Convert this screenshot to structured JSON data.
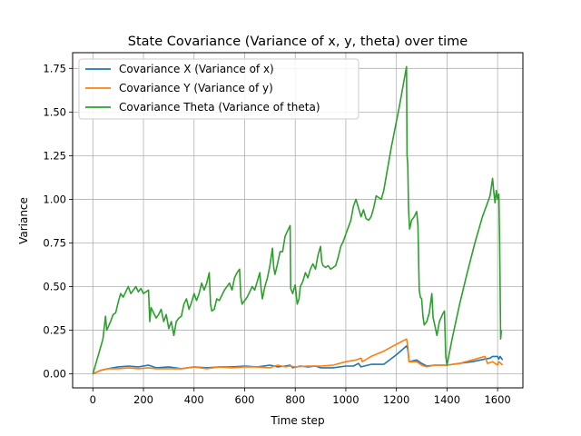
{
  "chart_data": {
    "type": "line",
    "title": "State Covariance (Variance of x, y, theta) over time",
    "xlabel": "Time step",
    "ylabel": "Variance",
    "xlim": [
      -80,
      1700
    ],
    "ylim": [
      -0.08,
      1.84
    ],
    "xticks": [
      0,
      200,
      400,
      600,
      800,
      1000,
      1200,
      1400,
      1600
    ],
    "xtick_labels": [
      "0",
      "200",
      "400",
      "600",
      "800",
      "1000",
      "1200",
      "1400",
      "1600"
    ],
    "yticks": [
      0.0,
      0.25,
      0.5,
      0.75,
      1.0,
      1.25,
      1.5,
      1.75
    ],
    "ytick_labels": [
      "0.00",
      "0.25",
      "0.50",
      "0.75",
      "1.00",
      "1.25",
      "1.50",
      "1.75"
    ],
    "grid": true,
    "legend_position": "upper-left",
    "series": [
      {
        "name": "Covariance X (Variance of x)",
        "color": "#1f77b4",
        "points": [
          [
            0,
            0.0
          ],
          [
            30,
            0.02
          ],
          [
            60,
            0.03
          ],
          [
            100,
            0.04
          ],
          [
            140,
            0.045
          ],
          [
            180,
            0.04
          ],
          [
            220,
            0.05
          ],
          [
            250,
            0.035
          ],
          [
            300,
            0.04
          ],
          [
            350,
            0.03
          ],
          [
            400,
            0.04
          ],
          [
            450,
            0.035
          ],
          [
            500,
            0.04
          ],
          [
            550,
            0.04
          ],
          [
            600,
            0.045
          ],
          [
            650,
            0.04
          ],
          [
            700,
            0.05
          ],
          [
            730,
            0.04
          ],
          [
            760,
            0.045
          ],
          [
            780,
            0.05
          ],
          [
            790,
            0.035
          ],
          [
            820,
            0.045
          ],
          [
            850,
            0.04
          ],
          [
            880,
            0.045
          ],
          [
            900,
            0.035
          ],
          [
            950,
            0.035
          ],
          [
            1000,
            0.045
          ],
          [
            1030,
            0.045
          ],
          [
            1050,
            0.06
          ],
          [
            1060,
            0.04
          ],
          [
            1100,
            0.055
          ],
          [
            1150,
            0.055
          ],
          [
            1200,
            0.11
          ],
          [
            1240,
            0.16
          ],
          [
            1245,
            0.14
          ],
          [
            1250,
            0.07
          ],
          [
            1280,
            0.08
          ],
          [
            1300,
            0.06
          ],
          [
            1320,
            0.045
          ],
          [
            1350,
            0.05
          ],
          [
            1400,
            0.05
          ],
          [
            1450,
            0.06
          ],
          [
            1500,
            0.07
          ],
          [
            1550,
            0.085
          ],
          [
            1570,
            0.09
          ],
          [
            1580,
            0.1
          ],
          [
            1600,
            0.1
          ],
          [
            1605,
            0.085
          ],
          [
            1610,
            0.1
          ],
          [
            1620,
            0.08
          ]
        ]
      },
      {
        "name": "Covariance Y (Variance of y)",
        "color": "#ff7f0e",
        "points": [
          [
            0,
            0.0
          ],
          [
            30,
            0.02
          ],
          [
            60,
            0.03
          ],
          [
            100,
            0.03
          ],
          [
            140,
            0.035
          ],
          [
            180,
            0.03
          ],
          [
            220,
            0.035
          ],
          [
            250,
            0.03
          ],
          [
            300,
            0.03
          ],
          [
            350,
            0.03
          ],
          [
            400,
            0.04
          ],
          [
            450,
            0.03
          ],
          [
            500,
            0.04
          ],
          [
            550,
            0.035
          ],
          [
            600,
            0.04
          ],
          [
            650,
            0.04
          ],
          [
            700,
            0.035
          ],
          [
            730,
            0.05
          ],
          [
            760,
            0.04
          ],
          [
            780,
            0.045
          ],
          [
            800,
            0.04
          ],
          [
            850,
            0.045
          ],
          [
            900,
            0.045
          ],
          [
            950,
            0.05
          ],
          [
            1000,
            0.07
          ],
          [
            1040,
            0.08
          ],
          [
            1060,
            0.09
          ],
          [
            1065,
            0.07
          ],
          [
            1100,
            0.1
          ],
          [
            1150,
            0.13
          ],
          [
            1200,
            0.17
          ],
          [
            1240,
            0.2
          ],
          [
            1245,
            0.16
          ],
          [
            1250,
            0.07
          ],
          [
            1280,
            0.07
          ],
          [
            1300,
            0.05
          ],
          [
            1320,
            0.04
          ],
          [
            1350,
            0.05
          ],
          [
            1400,
            0.05
          ],
          [
            1450,
            0.06
          ],
          [
            1500,
            0.08
          ],
          [
            1550,
            0.1
          ],
          [
            1560,
            0.06
          ],
          [
            1580,
            0.07
          ],
          [
            1600,
            0.05
          ],
          [
            1605,
            0.07
          ],
          [
            1620,
            0.05
          ]
        ]
      },
      {
        "name": "Covariance Theta (Variance of theta)",
        "color": "#2ca02c",
        "points": [
          [
            0,
            0.0
          ],
          [
            20,
            0.1
          ],
          [
            40,
            0.2
          ],
          [
            50,
            0.33
          ],
          [
            55,
            0.25
          ],
          [
            70,
            0.3
          ],
          [
            80,
            0.34
          ],
          [
            90,
            0.35
          ],
          [
            100,
            0.41
          ],
          [
            110,
            0.46
          ],
          [
            120,
            0.44
          ],
          [
            130,
            0.47
          ],
          [
            140,
            0.5
          ],
          [
            150,
            0.46
          ],
          [
            160,
            0.48
          ],
          [
            170,
            0.5
          ],
          [
            180,
            0.47
          ],
          [
            190,
            0.49
          ],
          [
            200,
            0.46
          ],
          [
            220,
            0.48
          ],
          [
            225,
            0.3
          ],
          [
            230,
            0.38
          ],
          [
            240,
            0.35
          ],
          [
            250,
            0.32
          ],
          [
            260,
            0.34
          ],
          [
            270,
            0.37
          ],
          [
            280,
            0.3
          ],
          [
            290,
            0.34
          ],
          [
            300,
            0.26
          ],
          [
            310,
            0.3
          ],
          [
            320,
            0.22
          ],
          [
            330,
            0.3
          ],
          [
            340,
            0.32
          ],
          [
            350,
            0.33
          ],
          [
            360,
            0.4
          ],
          [
            370,
            0.43
          ],
          [
            380,
            0.37
          ],
          [
            390,
            0.41
          ],
          [
            400,
            0.46
          ],
          [
            410,
            0.42
          ],
          [
            420,
            0.46
          ],
          [
            430,
            0.52
          ],
          [
            440,
            0.48
          ],
          [
            450,
            0.52
          ],
          [
            460,
            0.58
          ],
          [
            465,
            0.4
          ],
          [
            470,
            0.36
          ],
          [
            480,
            0.37
          ],
          [
            490,
            0.43
          ],
          [
            500,
            0.42
          ],
          [
            510,
            0.45
          ],
          [
            520,
            0.48
          ],
          [
            530,
            0.5
          ],
          [
            540,
            0.52
          ],
          [
            550,
            0.48
          ],
          [
            560,
            0.55
          ],
          [
            570,
            0.58
          ],
          [
            580,
            0.6
          ],
          [
            585,
            0.44
          ],
          [
            590,
            0.4
          ],
          [
            600,
            0.42
          ],
          [
            610,
            0.44
          ],
          [
            620,
            0.47
          ],
          [
            630,
            0.5
          ],
          [
            640,
            0.48
          ],
          [
            650,
            0.53
          ],
          [
            660,
            0.58
          ],
          [
            665,
            0.49
          ],
          [
            670,
            0.43
          ],
          [
            680,
            0.5
          ],
          [
            690,
            0.55
          ],
          [
            700,
            0.62
          ],
          [
            710,
            0.72
          ],
          [
            715,
            0.61
          ],
          [
            720,
            0.57
          ],
          [
            730,
            0.63
          ],
          [
            740,
            0.7
          ],
          [
            750,
            0.7
          ],
          [
            760,
            0.79
          ],
          [
            770,
            0.82
          ],
          [
            780,
            0.85
          ],
          [
            782,
            0.49
          ],
          [
            790,
            0.46
          ],
          [
            800,
            0.51
          ],
          [
            805,
            0.44
          ],
          [
            808,
            0.4
          ],
          [
            815,
            0.43
          ],
          [
            820,
            0.5
          ],
          [
            830,
            0.53
          ],
          [
            840,
            0.58
          ],
          [
            850,
            0.55
          ],
          [
            860,
            0.6
          ],
          [
            870,
            0.63
          ],
          [
            880,
            0.6
          ],
          [
            890,
            0.68
          ],
          [
            900,
            0.73
          ],
          [
            905,
            0.64
          ],
          [
            910,
            0.62
          ],
          [
            920,
            0.61
          ],
          [
            930,
            0.62
          ],
          [
            940,
            0.6
          ],
          [
            950,
            0.61
          ],
          [
            960,
            0.62
          ],
          [
            970,
            0.67
          ],
          [
            980,
            0.73
          ],
          [
            990,
            0.76
          ],
          [
            1000,
            0.8
          ],
          [
            1010,
            0.84
          ],
          [
            1020,
            0.88
          ],
          [
            1030,
            0.96
          ],
          [
            1040,
            1.0
          ],
          [
            1050,
            0.95
          ],
          [
            1060,
            0.9
          ],
          [
            1070,
            0.94
          ],
          [
            1080,
            0.89
          ],
          [
            1090,
            0.88
          ],
          [
            1100,
            0.9
          ],
          [
            1110,
            0.95
          ],
          [
            1120,
            1.02
          ],
          [
            1130,
            1.01
          ],
          [
            1140,
            1.0
          ],
          [
            1150,
            1.05
          ],
          [
            1180,
            1.3
          ],
          [
            1210,
            1.52
          ],
          [
            1240,
            1.76
          ],
          [
            1242,
            1.25
          ],
          [
            1245,
            1.2
          ],
          [
            1248,
            0.95
          ],
          [
            1252,
            0.83
          ],
          [
            1260,
            0.88
          ],
          [
            1270,
            0.9
          ],
          [
            1280,
            0.93
          ],
          [
            1285,
            0.85
          ],
          [
            1290,
            0.48
          ],
          [
            1295,
            0.44
          ],
          [
            1300,
            0.43
          ],
          [
            1305,
            0.33
          ],
          [
            1310,
            0.28
          ],
          [
            1320,
            0.3
          ],
          [
            1330,
            0.35
          ],
          [
            1340,
            0.46
          ],
          [
            1345,
            0.32
          ],
          [
            1350,
            0.29
          ],
          [
            1360,
            0.22
          ],
          [
            1370,
            0.3
          ],
          [
            1385,
            0.35
          ],
          [
            1390,
            0.36
          ],
          [
            1395,
            0.1
          ],
          [
            1400,
            0.05
          ],
          [
            1420,
            0.2
          ],
          [
            1450,
            0.4
          ],
          [
            1480,
            0.58
          ],
          [
            1510,
            0.75
          ],
          [
            1540,
            0.9
          ],
          [
            1570,
            1.02
          ],
          [
            1580,
            1.12
          ],
          [
            1585,
            1.04
          ],
          [
            1590,
            0.98
          ],
          [
            1595,
            1.05
          ],
          [
            1600,
            1.0
          ],
          [
            1605,
            1.03
          ],
          [
            1608,
            0.75
          ],
          [
            1610,
            0.5
          ],
          [
            1612,
            0.2
          ],
          [
            1615,
            0.25
          ]
        ]
      }
    ]
  }
}
